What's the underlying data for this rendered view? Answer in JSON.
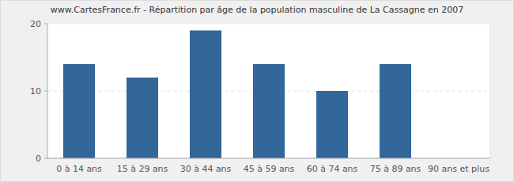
{
  "chart_data": {
    "type": "bar",
    "title": "www.CartesFrance.fr - Répartition par âge de la population masculine de La Cassagne en 2007",
    "categories": [
      "0 à 14 ans",
      "15 à 29 ans",
      "30 à 44 ans",
      "45 à 59 ans",
      "60 à 74 ans",
      "75 à 89 ans",
      "90 ans et plus"
    ],
    "values": [
      14,
      12,
      19,
      14,
      10,
      14,
      0
    ],
    "color": "#336699",
    "ylim": [
      0,
      20
    ],
    "yticks": [
      0,
      10,
      20
    ],
    "grid": true
  }
}
